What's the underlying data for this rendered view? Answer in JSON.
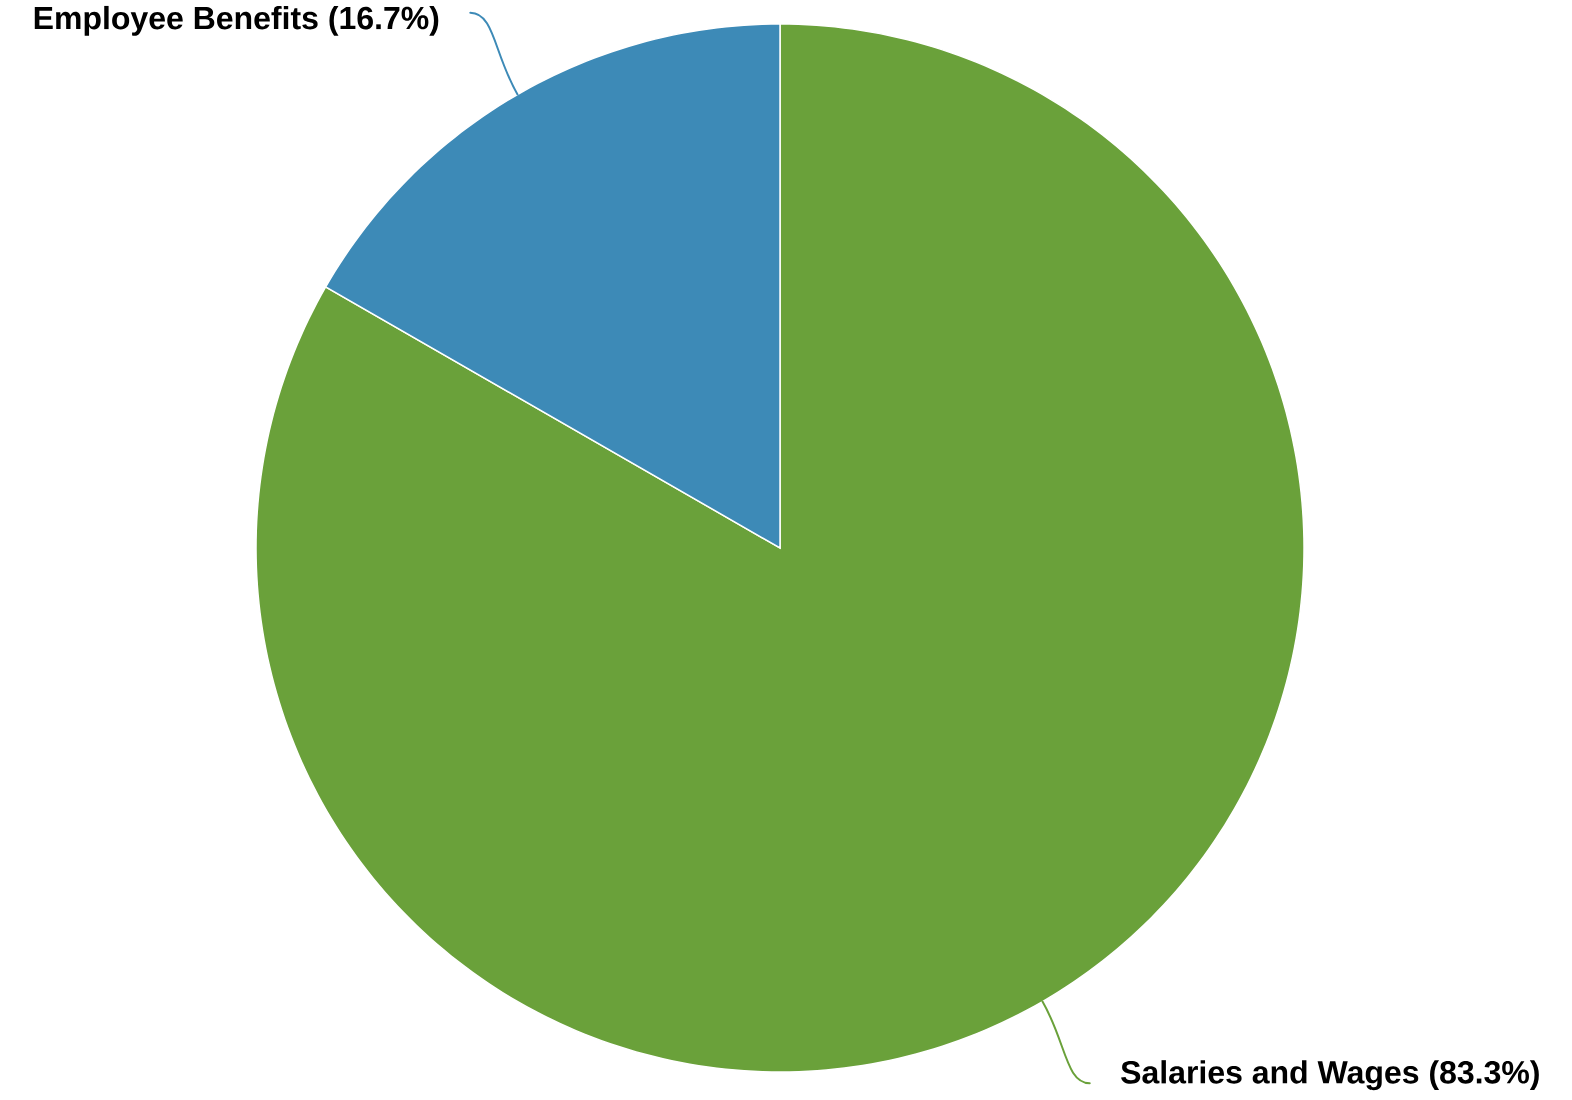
{
  "chart_data": {
    "type": "pie",
    "categories": [
      "Salaries and Wages",
      "Employee Benefits"
    ],
    "values": [
      83.3,
      16.7
    ],
    "colors": [
      "#6aa13a",
      "#3d8ab7"
    ],
    "value_labels": [
      "(83.3%)",
      "(16.7%)"
    ]
  }
}
